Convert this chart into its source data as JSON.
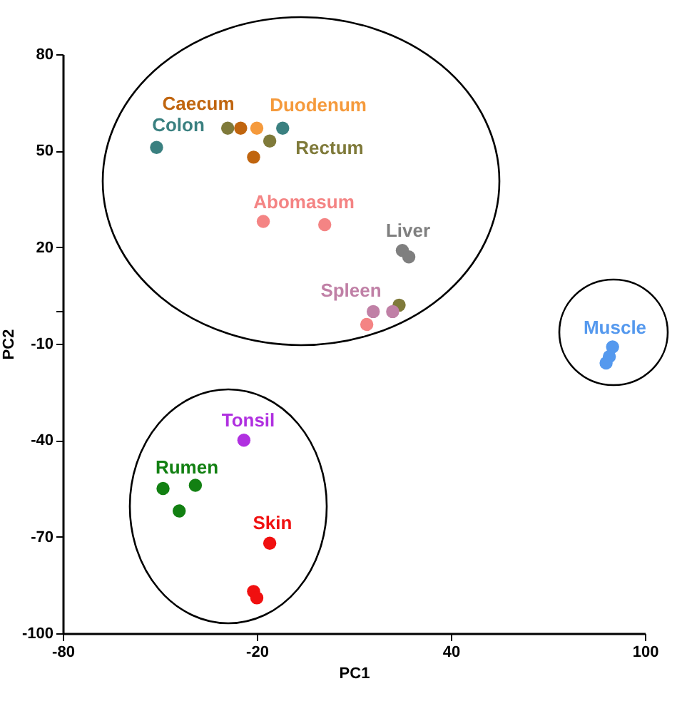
{
  "chart_data": {
    "type": "scatter",
    "xlabel": "PC1",
    "ylabel": "PC2",
    "xlim": [
      -80,
      100
    ],
    "xticks": [
      -80,
      -20,
      40,
      100
    ],
    "ylim": [
      -100,
      80
    ],
    "yticks": [
      80,
      50,
      20,
      {
        "value": 0,
        "label": null
      },
      -10,
      -40,
      -70,
      -100
    ],
    "grid": false,
    "marker": "circle",
    "series": [
      {
        "name": "Caecum",
        "color": "#c0650f",
        "x": [
          -25,
          -21
        ],
        "values": [
          57,
          48
        ]
      },
      {
        "name": "Colon",
        "color": "#3a8080",
        "x": [
          -51,
          -12
        ],
        "values": [
          51,
          57
        ]
      },
      {
        "name": "Duodenum",
        "color": "#f59a3c",
        "x": [
          -20
        ],
        "values": [
          57
        ]
      },
      {
        "name": "Rectum",
        "color": "#7f7a3a",
        "x": [
          -29,
          -16,
          24
        ],
        "values": [
          57,
          53,
          2
        ]
      },
      {
        "name": "Abomasum",
        "color": "#f48484",
        "x": [
          -18,
          1,
          14
        ],
        "values": [
          28,
          27,
          -4
        ]
      },
      {
        "name": "Liver",
        "color": "#7f7f7f",
        "x": [
          25,
          27
        ],
        "values": [
          19,
          17
        ]
      },
      {
        "name": "Spleen",
        "color": "#c080a6",
        "x": [
          16,
          22
        ],
        "values": [
          0,
          0
        ]
      },
      {
        "name": "Muscle",
        "color": "#5599ee",
        "x": [
          90,
          89,
          88
        ],
        "values": [
          -11,
          -14,
          -16
        ]
      },
      {
        "name": "Tonsil",
        "color": "#b030e0",
        "x": [
          -24
        ],
        "values": [
          -40
        ]
      },
      {
        "name": "Rumen",
        "color": "#128012",
        "x": [
          -49,
          -39,
          -44
        ],
        "values": [
          -55,
          -54,
          -62
        ]
      },
      {
        "name": "Skin",
        "color": "#f01010",
        "x": [
          -16,
          -21,
          -20
        ],
        "values": [
          -72,
          -87,
          -89
        ]
      }
    ]
  }
}
